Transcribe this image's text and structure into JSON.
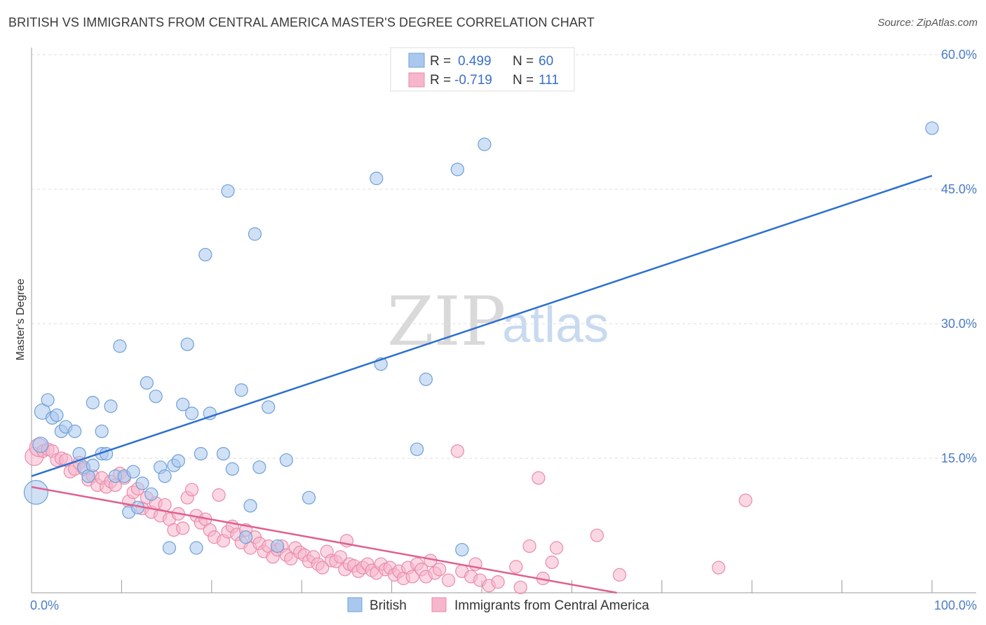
{
  "title": "BRITISH VS IMMIGRANTS FROM CENTRAL AMERICA MASTER'S DEGREE CORRELATION CHART",
  "source": "Source: ZipAtlas.com",
  "watermark": {
    "zip": "ZIP",
    "atlas": "atlas"
  },
  "colors": {
    "blue_fill": "#aac8ee",
    "blue_stroke": "#6f9fd8",
    "blue_line": "#2e6fd0",
    "pink_fill": "#f6b6cb",
    "pink_stroke": "#ea8aaa",
    "pink_line": "#e0608f",
    "grid": "#dddddd",
    "tick_text": "#4a7cc7"
  },
  "legend": {
    "rows": [
      {
        "r_label": "R =",
        "r_value": "0.499",
        "n_label": "N =",
        "n_value": "60"
      },
      {
        "r_label": "R =",
        "r_value": "-0.719",
        "n_label": "N =",
        "n_value": "111"
      }
    ]
  },
  "bottom_legend": {
    "british": "British",
    "immigrants": "Immigrants from Central America"
  },
  "chart_data": {
    "type": "scatter",
    "ylabel": "Master's Degree",
    "xlabel": "",
    "xlim": [
      0,
      100
    ],
    "ylim": [
      0,
      60
    ],
    "x_tick_labels": {
      "left": "0.0%",
      "right": "100.0%"
    },
    "y_ticks": [
      15,
      30,
      45,
      60
    ],
    "y_tick_labels": [
      "15.0%",
      "30.0%",
      "45.0%",
      "60.0%"
    ],
    "grid": true,
    "legend_position": "top-center",
    "series": [
      {
        "name": "British",
        "color": "#aac8ee",
        "trend": {
          "x": [
            0,
            100
          ],
          "y": [
            13.0,
            46.5
          ]
        },
        "points": [
          [
            0.5,
            11.2
          ],
          [
            1.0,
            16.5
          ],
          [
            1.2,
            20.2
          ],
          [
            1.8,
            21.5
          ],
          [
            2.3,
            19.5
          ],
          [
            2.8,
            19.8
          ],
          [
            3.3,
            18.0
          ],
          [
            3.8,
            18.5
          ],
          [
            4.8,
            18.0
          ],
          [
            5.3,
            15.5
          ],
          [
            5.8,
            14.0
          ],
          [
            6.3,
            13.0
          ],
          [
            6.8,
            14.2
          ],
          [
            6.8,
            21.2
          ],
          [
            7.8,
            15.5
          ],
          [
            7.8,
            18.0
          ],
          [
            8.3,
            15.5
          ],
          [
            8.8,
            20.8
          ],
          [
            9.3,
            13.0
          ],
          [
            9.8,
            27.5
          ],
          [
            10.3,
            13.0
          ],
          [
            10.8,
            9.0
          ],
          [
            11.3,
            13.5
          ],
          [
            11.8,
            9.5
          ],
          [
            12.3,
            12.2
          ],
          [
            12.8,
            23.4
          ],
          [
            13.3,
            11.0
          ],
          [
            13.8,
            21.9
          ],
          [
            14.3,
            14.0
          ],
          [
            14.8,
            13.0
          ],
          [
            15.3,
            5.0
          ],
          [
            15.8,
            14.2
          ],
          [
            16.3,
            14.7
          ],
          [
            16.8,
            21.0
          ],
          [
            17.3,
            27.7
          ],
          [
            17.8,
            20.0
          ],
          [
            18.3,
            5.0
          ],
          [
            18.8,
            15.5
          ],
          [
            19.3,
            37.7
          ],
          [
            19.8,
            20.0
          ],
          [
            21.3,
            15.5
          ],
          [
            21.8,
            44.8
          ],
          [
            22.3,
            13.8
          ],
          [
            23.3,
            22.6
          ],
          [
            23.8,
            6.2
          ],
          [
            24.3,
            9.7
          ],
          [
            24.8,
            40.0
          ],
          [
            25.3,
            14.0
          ],
          [
            26.3,
            20.7
          ],
          [
            27.3,
            5.2
          ],
          [
            28.3,
            14.8
          ],
          [
            30.8,
            10.6
          ],
          [
            38.3,
            46.2
          ],
          [
            38.8,
            25.5
          ],
          [
            42.8,
            16.0
          ],
          [
            43.8,
            23.8
          ],
          [
            47.8,
            4.8
          ],
          [
            47.3,
            47.2
          ],
          [
            50.3,
            50.0
          ],
          [
            100.0,
            51.8
          ]
        ]
      },
      {
        "name": "Immigrants from Central America",
        "color": "#f6b6cb",
        "trend": {
          "x": [
            0,
            65
          ],
          "y": [
            11.8,
            0.0
          ]
        },
        "points": [
          [
            0.3,
            15.2
          ],
          [
            0.8,
            16.2
          ],
          [
            1.3,
            15.8
          ],
          [
            1.8,
            16.0
          ],
          [
            2.3,
            15.8
          ],
          [
            2.8,
            14.8
          ],
          [
            3.3,
            15.0
          ],
          [
            3.8,
            14.8
          ],
          [
            4.3,
            13.5
          ],
          [
            4.8,
            13.8
          ],
          [
            5.3,
            14.5
          ],
          [
            5.8,
            13.8
          ],
          [
            6.3,
            12.6
          ],
          [
            6.8,
            13.0
          ],
          [
            7.3,
            12.0
          ],
          [
            7.8,
            12.8
          ],
          [
            8.3,
            11.8
          ],
          [
            8.8,
            12.4
          ],
          [
            9.3,
            12.0
          ],
          [
            9.8,
            13.3
          ],
          [
            10.3,
            12.8
          ],
          [
            10.8,
            10.2
          ],
          [
            11.3,
            11.2
          ],
          [
            11.8,
            11.6
          ],
          [
            12.3,
            9.4
          ],
          [
            12.8,
            10.6
          ],
          [
            13.3,
            9.0
          ],
          [
            13.8,
            10.0
          ],
          [
            14.3,
            8.6
          ],
          [
            14.8,
            9.8
          ],
          [
            15.3,
            8.2
          ],
          [
            15.8,
            7.0
          ],
          [
            16.3,
            8.8
          ],
          [
            16.8,
            7.2
          ],
          [
            17.3,
            10.6
          ],
          [
            17.8,
            11.5
          ],
          [
            18.3,
            8.6
          ],
          [
            18.8,
            7.8
          ],
          [
            19.3,
            8.2
          ],
          [
            19.8,
            7.0
          ],
          [
            20.3,
            6.2
          ],
          [
            20.8,
            10.9
          ],
          [
            21.3,
            5.8
          ],
          [
            21.8,
            6.8
          ],
          [
            22.3,
            7.4
          ],
          [
            22.8,
            6.5
          ],
          [
            23.3,
            5.6
          ],
          [
            23.8,
            7.0
          ],
          [
            24.3,
            5.0
          ],
          [
            24.8,
            6.2
          ],
          [
            25.3,
            5.5
          ],
          [
            25.8,
            4.6
          ],
          [
            26.3,
            5.2
          ],
          [
            26.8,
            4.0
          ],
          [
            27.3,
            4.8
          ],
          [
            27.8,
            5.2
          ],
          [
            28.3,
            4.2
          ],
          [
            28.8,
            3.8
          ],
          [
            29.3,
            5.0
          ],
          [
            29.8,
            4.5
          ],
          [
            30.3,
            4.2
          ],
          [
            30.8,
            3.5
          ],
          [
            31.3,
            4.0
          ],
          [
            31.8,
            3.2
          ],
          [
            32.3,
            2.8
          ],
          [
            32.8,
            4.6
          ],
          [
            33.3,
            3.6
          ],
          [
            33.8,
            3.5
          ],
          [
            34.3,
            4.0
          ],
          [
            34.8,
            2.6
          ],
          [
            35.3,
            3.2
          ],
          [
            35.8,
            3.0
          ],
          [
            36.3,
            2.4
          ],
          [
            36.8,
            2.8
          ],
          [
            37.3,
            3.2
          ],
          [
            37.8,
            2.5
          ],
          [
            38.3,
            2.2
          ],
          [
            38.8,
            3.2
          ],
          [
            39.3,
            2.6
          ],
          [
            39.8,
            2.8
          ],
          [
            40.3,
            2.0
          ],
          [
            40.8,
            2.4
          ],
          [
            41.3,
            1.6
          ],
          [
            41.8,
            2.8
          ],
          [
            42.3,
            1.8
          ],
          [
            42.8,
            3.2
          ],
          [
            43.3,
            2.6
          ],
          [
            43.8,
            1.8
          ],
          [
            44.3,
            3.6
          ],
          [
            44.8,
            2.2
          ],
          [
            45.3,
            2.6
          ],
          [
            46.3,
            1.4
          ],
          [
            47.3,
            15.8
          ],
          [
            47.8,
            2.4
          ],
          [
            48.8,
            1.8
          ],
          [
            49.3,
            3.2
          ],
          [
            49.8,
            1.4
          ],
          [
            50.8,
            0.8
          ],
          [
            51.8,
            1.2
          ],
          [
            53.8,
            2.9
          ],
          [
            54.3,
            0.6
          ],
          [
            55.3,
            5.2
          ],
          [
            56.3,
            12.8
          ],
          [
            56.8,
            1.6
          ],
          [
            57.8,
            3.4
          ],
          [
            58.3,
            5.0
          ],
          [
            62.8,
            6.4
          ],
          [
            65.3,
            2.0
          ],
          [
            76.3,
            2.8
          ],
          [
            79.3,
            10.3
          ],
          [
            35.0,
            5.8
          ]
        ]
      }
    ]
  }
}
